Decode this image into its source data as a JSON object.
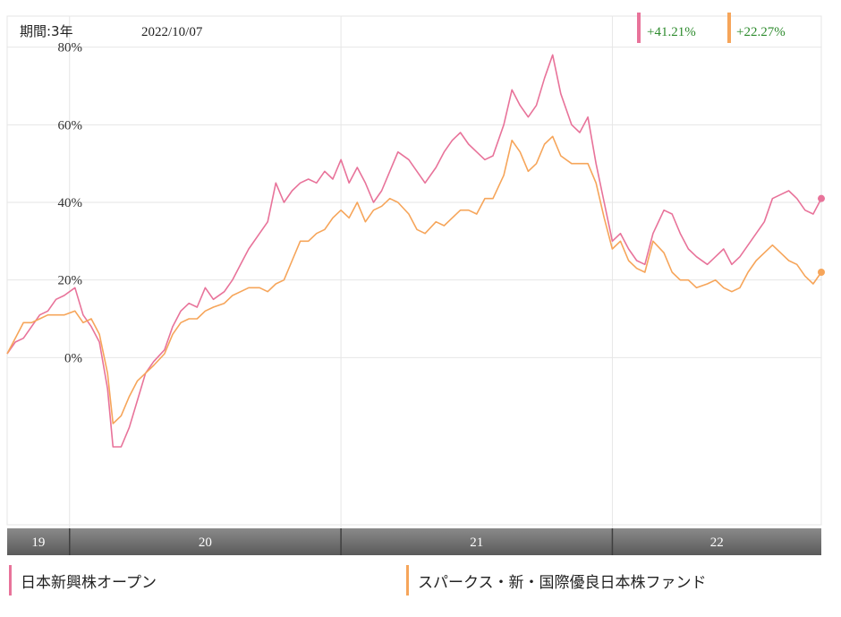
{
  "header": {
    "period_label": "期間:3年",
    "date": "2022/10/07"
  },
  "performance": [
    {
      "text": "+41.21%",
      "color": "#e8739a"
    },
    {
      "text": "+22.27%",
      "color": "#f6a55a"
    }
  ],
  "legend": [
    {
      "label": "日本新興株オープン",
      "color": "#e8739a"
    },
    {
      "label": "スパークス・新・国際優良日本株ファンド",
      "color": "#f6a55a"
    }
  ],
  "colors": {
    "grid": "#e6e6e6",
    "band": "#6f6f6f",
    "text_green": "#2e8b2e"
  },
  "chart_data": {
    "type": "line",
    "title": "",
    "xlabel": "",
    "ylabel": "",
    "y_tick_labels": [
      "80%",
      "60%",
      "40%",
      "20%",
      "0%"
    ],
    "y_ticks": [
      80,
      60,
      40,
      20,
      0
    ],
    "ylim": [
      -44,
      88
    ],
    "x_bands": [
      {
        "label": "19",
        "from": 2019.77,
        "to": 2020.0
      },
      {
        "label": "20",
        "from": 2020.0,
        "to": 2021.0
      },
      {
        "label": "21",
        "from": 2021.0,
        "to": 2022.0
      },
      {
        "label": "22",
        "from": 2022.0,
        "to": 2022.77
      }
    ],
    "xlim": [
      2019.77,
      2022.77
    ],
    "grid": true,
    "legend_position": "bottom",
    "series": [
      {
        "name": "日本新興株オープン",
        "color": "#e8739a",
        "points": [
          [
            2019.77,
            1
          ],
          [
            2019.8,
            4
          ],
          [
            2019.83,
            5
          ],
          [
            2019.86,
            8
          ],
          [
            2019.89,
            11
          ],
          [
            2019.92,
            12
          ],
          [
            2019.95,
            15
          ],
          [
            2019.98,
            16
          ],
          [
            2020.02,
            18
          ],
          [
            2020.05,
            11
          ],
          [
            2020.08,
            8
          ],
          [
            2020.11,
            4
          ],
          [
            2020.14,
            -8
          ],
          [
            2020.16,
            -23
          ],
          [
            2020.19,
            -23
          ],
          [
            2020.22,
            -18
          ],
          [
            2020.25,
            -11
          ],
          [
            2020.28,
            -4
          ],
          [
            2020.31,
            -1
          ],
          [
            2020.35,
            2
          ],
          [
            2020.38,
            8
          ],
          [
            2020.41,
            12
          ],
          [
            2020.44,
            14
          ],
          [
            2020.47,
            13
          ],
          [
            2020.5,
            18
          ],
          [
            2020.53,
            15
          ],
          [
            2020.57,
            17
          ],
          [
            2020.6,
            20
          ],
          [
            2020.63,
            24
          ],
          [
            2020.66,
            28
          ],
          [
            2020.7,
            32
          ],
          [
            2020.73,
            35
          ],
          [
            2020.76,
            45
          ],
          [
            2020.79,
            40
          ],
          [
            2020.82,
            43
          ],
          [
            2020.85,
            45
          ],
          [
            2020.88,
            46
          ],
          [
            2020.91,
            45
          ],
          [
            2020.94,
            48
          ],
          [
            2020.97,
            46
          ],
          [
            2021.0,
            51
          ],
          [
            2021.03,
            45
          ],
          [
            2021.06,
            49
          ],
          [
            2021.09,
            45
          ],
          [
            2021.12,
            40
          ],
          [
            2021.15,
            43
          ],
          [
            2021.18,
            48
          ],
          [
            2021.21,
            53
          ],
          [
            2021.25,
            51
          ],
          [
            2021.28,
            48
          ],
          [
            2021.31,
            45
          ],
          [
            2021.35,
            49
          ],
          [
            2021.38,
            53
          ],
          [
            2021.41,
            56
          ],
          [
            2021.44,
            58
          ],
          [
            2021.47,
            55
          ],
          [
            2021.5,
            53
          ],
          [
            2021.53,
            51
          ],
          [
            2021.56,
            52
          ],
          [
            2021.6,
            60
          ],
          [
            2021.63,
            69
          ],
          [
            2021.66,
            65
          ],
          [
            2021.69,
            62
          ],
          [
            2021.72,
            65
          ],
          [
            2021.75,
            72
          ],
          [
            2021.78,
            78
          ],
          [
            2021.81,
            68
          ],
          [
            2021.85,
            60
          ],
          [
            2021.88,
            58
          ],
          [
            2021.91,
            62
          ],
          [
            2021.94,
            50
          ],
          [
            2021.97,
            40
          ],
          [
            2022.0,
            30
          ],
          [
            2022.03,
            32
          ],
          [
            2022.06,
            28
          ],
          [
            2022.09,
            25
          ],
          [
            2022.12,
            24
          ],
          [
            2022.15,
            32
          ],
          [
            2022.19,
            38
          ],
          [
            2022.22,
            37
          ],
          [
            2022.25,
            32
          ],
          [
            2022.28,
            28
          ],
          [
            2022.31,
            26
          ],
          [
            2022.35,
            24
          ],
          [
            2022.38,
            26
          ],
          [
            2022.41,
            28
          ],
          [
            2022.44,
            24
          ],
          [
            2022.47,
            26
          ],
          [
            2022.5,
            29
          ],
          [
            2022.53,
            32
          ],
          [
            2022.56,
            35
          ],
          [
            2022.59,
            41
          ],
          [
            2022.62,
            42
          ],
          [
            2022.65,
            43
          ],
          [
            2022.68,
            41
          ],
          [
            2022.71,
            38
          ],
          [
            2022.74,
            37
          ],
          [
            2022.77,
            41
          ]
        ]
      },
      {
        "name": "スパークス・新・国際優良日本株ファンド",
        "color": "#f6a55a",
        "points": [
          [
            2019.77,
            1
          ],
          [
            2019.8,
            5
          ],
          [
            2019.83,
            9
          ],
          [
            2019.86,
            9
          ],
          [
            2019.89,
            10
          ],
          [
            2019.92,
            11
          ],
          [
            2019.95,
            11
          ],
          [
            2019.98,
            11
          ],
          [
            2020.02,
            12
          ],
          [
            2020.05,
            9
          ],
          [
            2020.08,
            10
          ],
          [
            2020.11,
            6
          ],
          [
            2020.14,
            -4
          ],
          [
            2020.16,
            -17
          ],
          [
            2020.19,
            -15
          ],
          [
            2020.22,
            -10
          ],
          [
            2020.25,
            -6
          ],
          [
            2020.28,
            -4
          ],
          [
            2020.31,
            -2
          ],
          [
            2020.35,
            1
          ],
          [
            2020.38,
            6
          ],
          [
            2020.41,
            9
          ],
          [
            2020.44,
            10
          ],
          [
            2020.47,
            10
          ],
          [
            2020.5,
            12
          ],
          [
            2020.53,
            13
          ],
          [
            2020.57,
            14
          ],
          [
            2020.6,
            16
          ],
          [
            2020.63,
            17
          ],
          [
            2020.66,
            18
          ],
          [
            2020.7,
            18
          ],
          [
            2020.73,
            17
          ],
          [
            2020.76,
            19
          ],
          [
            2020.79,
            20
          ],
          [
            2020.82,
            25
          ],
          [
            2020.85,
            30
          ],
          [
            2020.88,
            30
          ],
          [
            2020.91,
            32
          ],
          [
            2020.94,
            33
          ],
          [
            2020.97,
            36
          ],
          [
            2021.0,
            38
          ],
          [
            2021.03,
            36
          ],
          [
            2021.06,
            40
          ],
          [
            2021.09,
            35
          ],
          [
            2021.12,
            38
          ],
          [
            2021.15,
            39
          ],
          [
            2021.18,
            41
          ],
          [
            2021.21,
            40
          ],
          [
            2021.25,
            37
          ],
          [
            2021.28,
            33
          ],
          [
            2021.31,
            32
          ],
          [
            2021.35,
            35
          ],
          [
            2021.38,
            34
          ],
          [
            2021.41,
            36
          ],
          [
            2021.44,
            38
          ],
          [
            2021.47,
            38
          ],
          [
            2021.5,
            37
          ],
          [
            2021.53,
            41
          ],
          [
            2021.56,
            41
          ],
          [
            2021.6,
            47
          ],
          [
            2021.63,
            56
          ],
          [
            2021.66,
            53
          ],
          [
            2021.69,
            48
          ],
          [
            2021.72,
            50
          ],
          [
            2021.75,
            55
          ],
          [
            2021.78,
            57
          ],
          [
            2021.81,
            52
          ],
          [
            2021.85,
            50
          ],
          [
            2021.88,
            50
          ],
          [
            2021.91,
            50
          ],
          [
            2021.94,
            45
          ],
          [
            2021.97,
            36
          ],
          [
            2022.0,
            28
          ],
          [
            2022.03,
            30
          ],
          [
            2022.06,
            25
          ],
          [
            2022.09,
            23
          ],
          [
            2022.12,
            22
          ],
          [
            2022.15,
            30
          ],
          [
            2022.19,
            27
          ],
          [
            2022.22,
            22
          ],
          [
            2022.25,
            20
          ],
          [
            2022.28,
            20
          ],
          [
            2022.31,
            18
          ],
          [
            2022.35,
            19
          ],
          [
            2022.38,
            20
          ],
          [
            2022.41,
            18
          ],
          [
            2022.44,
            17
          ],
          [
            2022.47,
            18
          ],
          [
            2022.5,
            22
          ],
          [
            2022.53,
            25
          ],
          [
            2022.56,
            27
          ],
          [
            2022.59,
            29
          ],
          [
            2022.62,
            27
          ],
          [
            2022.65,
            25
          ],
          [
            2022.68,
            24
          ],
          [
            2022.71,
            21
          ],
          [
            2022.74,
            19
          ],
          [
            2022.77,
            22
          ]
        ]
      }
    ]
  }
}
